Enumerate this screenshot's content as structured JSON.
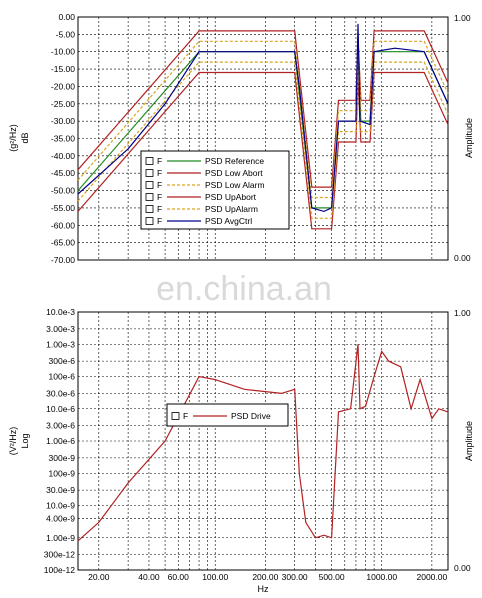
{
  "watermark": "en.china.an",
  "chart_data": [
    {
      "type": "line",
      "scale_x": "log",
      "scale_y": "linear",
      "ylabel": "dB",
      "ylabel_unit": "(g²/Hz)",
      "y2label": "Amplitude",
      "ylim": [
        -70,
        0
      ],
      "y_ticks": [
        0,
        -5,
        -10,
        -15,
        -20,
        -25,
        -30,
        -35,
        -40,
        -45,
        -50,
        -55,
        -60,
        -65,
        -70
      ],
      "y_tick_labels": [
        "0.00",
        "-5.00",
        "-10.00",
        "-15.00",
        "-20.00",
        "-25.00",
        "-30.00",
        "-35.00",
        "-40.00",
        "-45.00",
        "-50.00",
        "-55.00",
        "-60.00",
        "-65.00",
        "-70.00"
      ],
      "y2_tick_labels": [
        "1.00",
        "0.00"
      ],
      "xlim": [
        15,
        2500
      ],
      "grid": true,
      "legend_position": "center-left",
      "legend_checkbox_label": "F",
      "series": [
        {
          "name": "PSD Reference",
          "color": "#228b22",
          "style": "solid",
          "points": [
            [
              15,
              -50
            ],
            [
              80,
              -10
            ],
            [
              300,
              -10
            ],
            [
              380,
              -55
            ],
            [
              500,
              -55
            ],
            [
              550,
              -30
            ],
            [
              700,
              -30
            ],
            [
              720,
              -12
            ],
            [
              750,
              -30
            ],
            [
              850,
              -30
            ],
            [
              900,
              -10
            ],
            [
              1800,
              -10
            ],
            [
              2500,
              -25
            ]
          ]
        },
        {
          "name": "PSD Low Abort",
          "color": "#b22222",
          "style": "solid",
          "points": [
            [
              15,
              -56
            ],
            [
              80,
              -16
            ],
            [
              300,
              -16
            ],
            [
              380,
              -61
            ],
            [
              500,
              -61
            ],
            [
              550,
              -36
            ],
            [
              700,
              -36
            ],
            [
              720,
              -18
            ],
            [
              750,
              -36
            ],
            [
              850,
              -36
            ],
            [
              900,
              -16
            ],
            [
              1800,
              -16
            ],
            [
              2500,
              -31
            ]
          ]
        },
        {
          "name": "PSD Low Alarm",
          "color": "#daa520",
          "style": "dashed",
          "points": [
            [
              15,
              -53
            ],
            [
              80,
              -13
            ],
            [
              300,
              -13
            ],
            [
              380,
              -58
            ],
            [
              500,
              -58
            ],
            [
              550,
              -33
            ],
            [
              700,
              -33
            ],
            [
              720,
              -15
            ],
            [
              750,
              -33
            ],
            [
              850,
              -33
            ],
            [
              900,
              -13
            ],
            [
              1800,
              -13
            ],
            [
              2500,
              -28
            ]
          ]
        },
        {
          "name": "PSD UpAbort",
          "color": "#b22222",
          "style": "solid",
          "points": [
            [
              15,
              -44
            ],
            [
              80,
              -4
            ],
            [
              300,
              -4
            ],
            [
              380,
              -49
            ],
            [
              500,
              -49
            ],
            [
              550,
              -24
            ],
            [
              700,
              -24
            ],
            [
              720,
              -6
            ],
            [
              750,
              -24
            ],
            [
              850,
              -24
            ],
            [
              900,
              -4
            ],
            [
              1800,
              -4
            ],
            [
              2500,
              -19
            ]
          ]
        },
        {
          "name": "PSD UpAlarm",
          "color": "#daa520",
          "style": "dashed",
          "points": [
            [
              15,
              -47
            ],
            [
              80,
              -7
            ],
            [
              300,
              -7
            ],
            [
              380,
              -52
            ],
            [
              500,
              -52
            ],
            [
              550,
              -27
            ],
            [
              700,
              -27
            ],
            [
              720,
              -9
            ],
            [
              750,
              -27
            ],
            [
              850,
              -27
            ],
            [
              900,
              -7
            ],
            [
              1800,
              -7
            ],
            [
              2500,
              -22
            ]
          ]
        },
        {
          "name": "PSD AvgCtrl",
          "color": "#00008b",
          "style": "solid",
          "points": [
            [
              15,
              -51
            ],
            [
              30,
              -38
            ],
            [
              50,
              -25
            ],
            [
              80,
              -10
            ],
            [
              120,
              -10
            ],
            [
              200,
              -10
            ],
            [
              300,
              -10
            ],
            [
              320,
              -20
            ],
            [
              380,
              -55
            ],
            [
              450,
              -56
            ],
            [
              500,
              -55
            ],
            [
              550,
              -30
            ],
            [
              700,
              -30
            ],
            [
              720,
              -2
            ],
            [
              740,
              -30
            ],
            [
              850,
              -31
            ],
            [
              900,
              -10
            ],
            [
              1200,
              -9
            ],
            [
              1800,
              -10
            ],
            [
              2500,
              -25
            ]
          ]
        }
      ]
    },
    {
      "type": "line",
      "scale_x": "log",
      "scale_y": "log",
      "xlabel": "Hz",
      "ylabel": "Log",
      "ylabel_unit": "(V²/Hz)",
      "y2label": "Amplitude",
      "ylim": [
        1e-10,
        0.01
      ],
      "y_ticks": [
        0.01,
        0.003,
        0.001,
        0.0003,
        0.0001,
        3e-05,
        1e-05,
        3e-06,
        1e-06,
        3e-07,
        1e-07,
        3e-08,
        1e-08,
        4e-09,
        1e-09,
        3e-10,
        1e-10
      ],
      "y_tick_labels": [
        "10.0e-3",
        "3.00e-3",
        "1.00e-3",
        "300e-6",
        "100e-6",
        "30.0e-6",
        "10.0e-6",
        "3.00e-6",
        "1.00e-6",
        "300e-9",
        "100e-9",
        "30.0e-9",
        "10.0e-9",
        "4.00e-9",
        "1.00e-9",
        "300e-12",
        "100e-12"
      ],
      "y2_tick_labels": [
        "1.00",
        "0.00"
      ],
      "xlim": [
        15,
        2500
      ],
      "x_tick_labels": [
        {
          "value": 20,
          "label": "20.00"
        },
        {
          "value": 40,
          "label": "40.00"
        },
        {
          "value": 60,
          "label": "60.00"
        },
        {
          "value": 100,
          "label": "100.00"
        },
        {
          "value": 200,
          "label": "200.00"
        },
        {
          "value": 300,
          "label": "300.00"
        },
        {
          "value": 500,
          "label": "500.00"
        },
        {
          "value": 1000,
          "label": "1000.00"
        },
        {
          "value": 2000,
          "label": "2000.00"
        }
      ],
      "grid": true,
      "legend_position": "center-left",
      "legend_checkbox_label": "F",
      "series": [
        {
          "name": "PSD Drive",
          "color": "#b22222",
          "style": "solid",
          "points": [
            [
              15,
              8e-10
            ],
            [
              20,
              3e-09
            ],
            [
              30,
              5e-08
            ],
            [
              50,
              1e-06
            ],
            [
              80,
              0.0001
            ],
            [
              100,
              8e-05
            ],
            [
              150,
              4e-05
            ],
            [
              250,
              3e-05
            ],
            [
              300,
              4e-05
            ],
            [
              320,
              1e-07
            ],
            [
              350,
              3e-09
            ],
            [
              400,
              1e-09
            ],
            [
              450,
              1.2e-09
            ],
            [
              500,
              1e-09
            ],
            [
              550,
              8e-06
            ],
            [
              650,
              1e-05
            ],
            [
              720,
              0.001
            ],
            [
              740,
              1e-05
            ],
            [
              800,
              1.2e-05
            ],
            [
              900,
              0.0001
            ],
            [
              1000,
              0.0006
            ],
            [
              1100,
              0.0003
            ],
            [
              1300,
              0.0002
            ],
            [
              1500,
              1e-05
            ],
            [
              1700,
              8e-05
            ],
            [
              2000,
              5e-06
            ],
            [
              2200,
              1e-05
            ],
            [
              2500,
              8e-06
            ]
          ]
        }
      ]
    }
  ]
}
